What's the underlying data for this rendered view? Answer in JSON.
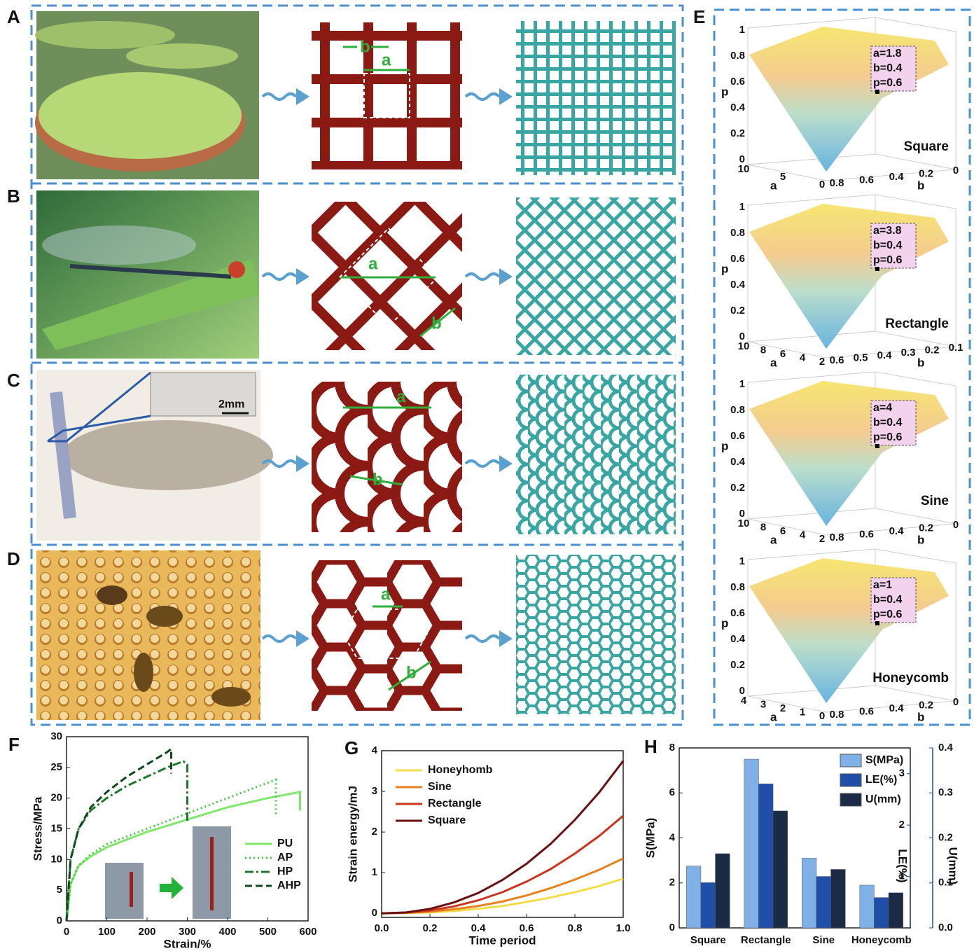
{
  "panel_labels": [
    "A",
    "B",
    "C",
    "D",
    "E",
    "F",
    "G",
    "H"
  ],
  "rows": [
    {
      "annotations": [
        "b",
        "a"
      ]
    },
    {
      "annotations": [
        "a",
        "b"
      ]
    },
    {
      "annotations": [
        "a",
        "b"
      ],
      "inset_scale": "2mm"
    },
    {
      "annotations": [
        "a",
        "b"
      ]
    }
  ],
  "surfaces": [
    {
      "name": "Square",
      "z_label": "p",
      "a_label": "a",
      "b_label": "b",
      "box": [
        "a=1.8",
        "b=0.4",
        "p=0.6"
      ],
      "z_ticks": [
        "0",
        "0.2",
        "0.4",
        "0.6",
        "0.8",
        "1"
      ],
      "a_ticks": [
        "10",
        "5",
        "0"
      ],
      "b_ticks": [
        "0.8",
        "0.6",
        "0.4",
        "0.2",
        "0"
      ]
    },
    {
      "name": "Rectangle",
      "z_label": "p",
      "a_label": "a",
      "b_label": "b",
      "box": [
        "a=3.8",
        "b=0.4",
        "p=0.6"
      ],
      "z_ticks": [
        "0",
        "0.2",
        "0.4",
        "0.6",
        "0.8",
        "1"
      ],
      "a_ticks": [
        "10",
        "8",
        "6",
        "4",
        "2"
      ],
      "b_ticks": [
        "0.6",
        "0.5",
        "0.4",
        "0.3",
        "0.2",
        "0.1"
      ]
    },
    {
      "name": "Sine",
      "z_label": "p",
      "a_label": "a",
      "b_label": "b",
      "box": [
        "a=4",
        "b=0.4",
        "p=0.6"
      ],
      "z_ticks": [
        "0",
        "0.2",
        "0.4",
        "0.6",
        "0.8",
        "1"
      ],
      "a_ticks": [
        "10",
        "8",
        "6",
        "4",
        "2"
      ],
      "b_ticks": [
        "0.8",
        "0.6",
        "0.4",
        "0.2",
        "0"
      ]
    },
    {
      "name": "Honeycomb",
      "z_label": "p",
      "a_label": "a",
      "b_label": "b",
      "box": [
        "a=1",
        "b=0.4",
        "p=0.6"
      ],
      "z_ticks": [
        "0",
        "0.2",
        "0.4",
        "0.6",
        "0.8",
        "1"
      ],
      "a_ticks": [
        "4",
        "3",
        "2",
        "1",
        "0"
      ],
      "b_ticks": [
        "0.8",
        "0.6",
        "0.4",
        "0.2",
        "0"
      ]
    }
  ],
  "chart_data": [
    {
      "type": "line",
      "x_label": "Strain/%",
      "y_label": "Stress/MPa",
      "legend": "lower right",
      "xlim": [
        0,
        600
      ],
      "xticks": [
        0,
        100,
        200,
        300,
        400,
        500,
        600
      ],
      "ylim": [
        0,
        30
      ],
      "yticks": [
        0,
        5,
        10,
        15,
        20,
        25,
        30
      ],
      "series": [
        {
          "name": "PU",
          "color": "#7fe86a",
          "style": "solid",
          "x": [
            0,
            10,
            30,
            60,
            100,
            200,
            300,
            400,
            500,
            580,
            580
          ],
          "values": [
            0,
            6,
            9,
            10.5,
            12,
            14.5,
            16.5,
            18.5,
            20,
            21,
            18
          ]
        },
        {
          "name": "AP",
          "color": "#3ecb3a",
          "style": "dotted",
          "x": [
            0,
            10,
            30,
            60,
            100,
            200,
            300,
            400,
            500,
            520,
            520
          ],
          "values": [
            0,
            6,
            9,
            10.8,
            12.5,
            15,
            17.5,
            20,
            22.5,
            23,
            17
          ]
        },
        {
          "name": "HP",
          "color": "#1e7a2a",
          "style": "dashdot",
          "x": [
            0,
            10,
            30,
            60,
            100,
            150,
            200,
            250,
            290,
            300,
            300
          ],
          "values": [
            0,
            10,
            15,
            18,
            20,
            22,
            23.5,
            25,
            26,
            25.5,
            16
          ]
        },
        {
          "name": "AHP",
          "color": "#0f4a1a",
          "style": "dashed",
          "x": [
            0,
            10,
            30,
            60,
            100,
            150,
            200,
            250,
            260,
            260
          ],
          "values": [
            0,
            10,
            15,
            18.5,
            21,
            23.5,
            25.5,
            27.5,
            28,
            24
          ]
        }
      ]
    },
    {
      "type": "line",
      "x_label": "Time period",
      "y_label": "Strain energy/mJ",
      "legend": "upper left",
      "xlim": [
        0,
        1
      ],
      "xticks": [
        {
          "value": 0,
          "label": "0.0"
        },
        0.2,
        0.4,
        0.6,
        0.8,
        {
          "value": 1,
          "label": "1.0"
        }
      ],
      "ylim": [
        -0.1,
        4
      ],
      "yticks": [
        0,
        1,
        2,
        3,
        4
      ],
      "x": [
        0,
        0.1,
        0.2,
        0.3,
        0.4,
        0.5,
        0.6,
        0.7,
        0.8,
        0.9,
        1
      ],
      "series": [
        {
          "name": "Honeyhomb",
          "color": "#f3dc48",
          "style": "solid",
          "values": [
            0,
            0.01,
            0.02,
            0.06,
            0.11,
            0.18,
            0.28,
            0.39,
            0.52,
            0.67,
            0.85
          ]
        },
        {
          "name": "Sine",
          "color": "#e8821e",
          "style": "solid",
          "values": [
            0,
            0.01,
            0.04,
            0.1,
            0.18,
            0.29,
            0.44,
            0.62,
            0.83,
            1.07,
            1.35
          ]
        },
        {
          "name": "Rectangle",
          "color": "#c9361c",
          "style": "solid",
          "values": [
            0,
            0.02,
            0.07,
            0.17,
            0.32,
            0.52,
            0.78,
            1.09,
            1.47,
            1.9,
            2.4
          ]
        },
        {
          "name": "Square",
          "color": "#6b1010",
          "style": "solid",
          "values": [
            0,
            0.02,
            0.11,
            0.27,
            0.5,
            0.82,
            1.22,
            1.71,
            2.3,
            2.97,
            3.75
          ]
        }
      ]
    },
    {
      "type": "bar",
      "y_label": "S(MPa)",
      "y2_label": "LE(%)",
      "y3_label": "U(mm)",
      "legend": "upper right",
      "categories": [
        "Square",
        "Rectangle",
        "Sine",
        "Honeycomb"
      ],
      "ylim": [
        0,
        8
      ],
      "yticks": [
        0,
        2,
        4,
        6,
        8
      ],
      "y2lim": [
        0,
        3.5
      ],
      "y2ticks": [
        1,
        2,
        3
      ],
      "y3lim": [
        0,
        0.4
      ],
      "y3ticks": [
        {
          "value": 0,
          "label": "0.0"
        },
        0.1,
        0.2,
        0.3,
        0.4
      ],
      "series": [
        {
          "name": "S(MPa)",
          "color": "#7fb0e6",
          "values": [
            2.75,
            7.5,
            3.1,
            1.9
          ]
        },
        {
          "name": "LE(%)",
          "color": "#1f4fa8",
          "axis": "y2",
          "values": [
            0.88,
            2.8,
            1.0,
            0.59
          ]
        },
        {
          "name": "U(mm)",
          "color": "#1b2a45",
          "axis": "y3",
          "values": [
            0.165,
            0.26,
            0.13,
            0.078
          ]
        }
      ]
    }
  ]
}
